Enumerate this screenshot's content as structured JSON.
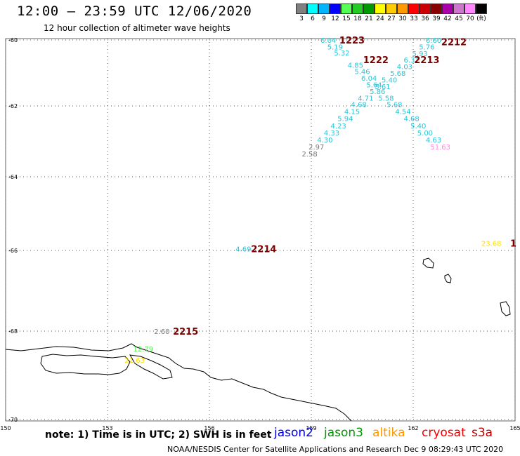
{
  "header": {
    "title": "12:00 – 23:59 UTC 12/06/2020",
    "subtitle": "12 hour collection of altimeter wave heights"
  },
  "color_scale": {
    "colors": [
      "#808080",
      "#00ffff",
      "#00b4ff",
      "#0000ff",
      "#55ff55",
      "#22cc22",
      "#009900",
      "#ffff00",
      "#ffcc00",
      "#ff9900",
      "#ff0000",
      "#cc0000",
      "#880000",
      "#aa00aa",
      "#cc77cc",
      "#ff88ff",
      "#000000"
    ],
    "ticks": [
      "3",
      "6",
      "9",
      "12",
      "15",
      "18",
      "21",
      "24",
      "27",
      "30",
      "33",
      "36",
      "39",
      "42",
      "45",
      "70",
      "(ft)"
    ]
  },
  "axes": {
    "lat_labels": [
      "-60",
      "-62",
      "-64",
      "-66",
      "-68",
      "-70"
    ],
    "lon_labels": [
      "150",
      "153",
      "156",
      "159",
      "162",
      "165"
    ]
  },
  "annotations": {
    "pass_labels": [
      {
        "text": "1223",
        "lon": 160.2,
        "lat": -60.0
      },
      {
        "text": "2212",
        "lon": 163.2,
        "lat": -60.05
      },
      {
        "text": "1222",
        "lon": 160.9,
        "lat": -60.6
      },
      {
        "text": "2213",
        "lon": 162.4,
        "lat": -60.6
      },
      {
        "text": "2214",
        "lon": 157.6,
        "lat": -65.95
      },
      {
        "text": "2215",
        "lon": 155.3,
        "lat": -68.0
      },
      {
        "text": "1",
        "lon": 164.95,
        "lat": -65.8
      }
    ],
    "wave_heights": [
      {
        "text": "6.04",
        "lon": 159.5,
        "lat": -60.0,
        "color": "#2bc3d6"
      },
      {
        "text": "5.19",
        "lon": 159.7,
        "lat": -60.2,
        "color": "#2bc3d6"
      },
      {
        "text": "5.32",
        "lon": 159.9,
        "lat": -60.38,
        "color": "#2bc3d6"
      },
      {
        "text": "4.85",
        "lon": 160.3,
        "lat": -60.75,
        "color": "#2bc3d6"
      },
      {
        "text": "5.46",
        "lon": 160.5,
        "lat": -60.95,
        "color": "#2bc3d6"
      },
      {
        "text": "6.04",
        "lon": 160.7,
        "lat": -61.15,
        "color": "#2bc3d6"
      },
      {
        "text": "5.64",
        "lon": 160.85,
        "lat": -61.35,
        "color": "#2bc3d6"
      },
      {
        "text": "5.86",
        "lon": 160.95,
        "lat": -61.55,
        "color": "#2bc3d6"
      },
      {
        "text": "4.71",
        "lon": 160.6,
        "lat": -61.75,
        "color": "#2bc3d6"
      },
      {
        "text": "4.68",
        "lon": 160.4,
        "lat": -61.95,
        "color": "#2bc3d6"
      },
      {
        "text": "4.15",
        "lon": 160.2,
        "lat": -62.15,
        "color": "#2bc3d6"
      },
      {
        "text": "5.94",
        "lon": 160.0,
        "lat": -62.35,
        "color": "#2bc3d6"
      },
      {
        "text": "4.23",
        "lon": 159.8,
        "lat": -62.55,
        "color": "#2bc3d6"
      },
      {
        "text": "4.33",
        "lon": 159.6,
        "lat": -62.75,
        "color": "#2bc3d6"
      },
      {
        "text": "4.30",
        "lon": 159.4,
        "lat": -62.95,
        "color": "#2bc3d6"
      },
      {
        "text": "2.97",
        "lon": 159.15,
        "lat": -63.15,
        "color": "#777777"
      },
      {
        "text": "2.58",
        "lon": 158.95,
        "lat": -63.35,
        "color": "#777777"
      },
      {
        "text": "6.60",
        "lon": 162.6,
        "lat": -60.0,
        "color": "#2bc3d6"
      },
      {
        "text": "5.76",
        "lon": 162.4,
        "lat": -60.2,
        "color": "#2bc3d6"
      },
      {
        "text": "5.93",
        "lon": 162.2,
        "lat": -60.4,
        "color": "#2bc3d6"
      },
      {
        "text": "6.31",
        "lon": 161.95,
        "lat": -60.6,
        "color": "#2bc3d6"
      },
      {
        "text": "4.03",
        "lon": 161.75,
        "lat": -60.8,
        "color": "#2bc3d6"
      },
      {
        "text": "5.68",
        "lon": 161.55,
        "lat": -61.0,
        "color": "#2bc3d6"
      },
      {
        "text": "5.40",
        "lon": 161.3,
        "lat": -61.2,
        "color": "#2bc3d6"
      },
      {
        "text": "5.61",
        "lon": 161.1,
        "lat": -61.4,
        "color": "#2bc3d6"
      },
      {
        "text": "5.58",
        "lon": 161.2,
        "lat": -61.75,
        "color": "#2bc3d6"
      },
      {
        "text": "5.68",
        "lon": 161.45,
        "lat": -61.95,
        "color": "#2bc3d6"
      },
      {
        "text": "4.54",
        "lon": 161.7,
        "lat": -62.15,
        "color": "#2bc3d6"
      },
      {
        "text": "4.68",
        "lon": 161.95,
        "lat": -62.35,
        "color": "#2bc3d6"
      },
      {
        "text": "5.40",
        "lon": 162.15,
        "lat": -62.55,
        "color": "#2bc3d6"
      },
      {
        "text": "5.00",
        "lon": 162.35,
        "lat": -62.75,
        "color": "#2bc3d6"
      },
      {
        "text": "4.63",
        "lon": 162.6,
        "lat": -62.95,
        "color": "#2bc3d6"
      },
      {
        "text": "51.63",
        "lon": 162.8,
        "lat": -63.15,
        "color": "#ff88dd"
      },
      {
        "text": "4.69",
        "lon": 157.0,
        "lat": -65.95,
        "color": "#2bc3d6"
      },
      {
        "text": "23.68",
        "lon": 164.3,
        "lat": -65.8,
        "color": "#ffdd00"
      },
      {
        "text": "2.60",
        "lon": 154.6,
        "lat": -68.0,
        "color": "#777777"
      },
      {
        "text": "12.79",
        "lon": 154.05,
        "lat": -68.4,
        "color": "#55ee55"
      },
      {
        "text": "21.63",
        "lon": 153.8,
        "lat": -68.65,
        "color": "#ffdd00"
      }
    ]
  },
  "footer": {
    "note": "note: 1) Time is in UTC; 2) SWH is in feet",
    "satellites": [
      {
        "name": "jason2",
        "color": "#0000dd"
      },
      {
        "name": "jason3",
        "color": "#009900"
      },
      {
        "name": "altika",
        "color": "#ff9900"
      },
      {
        "name": "cryosat",
        "color": "#ee0000"
      },
      {
        "name": "s3a",
        "color": "#bb0000"
      }
    ],
    "credit": "NOAA/NESDIS Center for Satellite Applications and Research    Dec  9 08:29:43 UTC 2020"
  }
}
